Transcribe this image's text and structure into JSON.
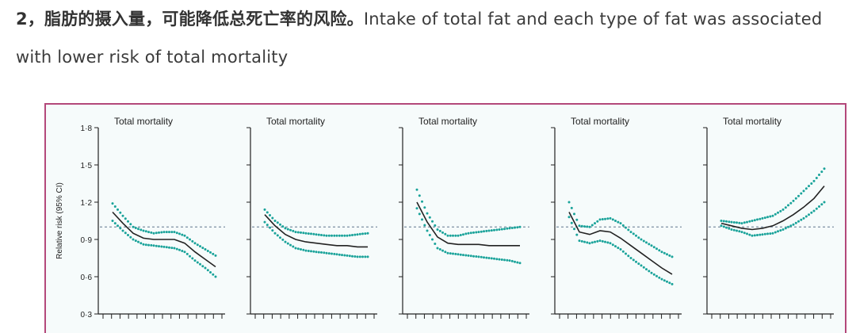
{
  "article": {
    "heading": "2，脂肪的摄入量，可能降低总死亡率的风险。",
    "body": "Intake of total fat and each type of fat was associated with lower risk of total mortality"
  },
  "colors": {
    "frame": "#b3487a",
    "curve": "#222222",
    "ci": "#1aa39a",
    "reference": "#8899aa"
  },
  "chart_data": [
    {
      "type": "line",
      "title": "Total mortality",
      "ylabel": "Relative risk (95% CI)",
      "ylim": [
        0.3,
        1.8
      ],
      "yticks": [
        0.3,
        0.6,
        0.9,
        1.2,
        1.5,
        1.8
      ],
      "ytick_labels": [
        "0·3",
        "0·6",
        "0·9",
        "1·2",
        "1·5",
        "1·8"
      ],
      "reference": 1.0,
      "xlim": [
        0,
        10
      ],
      "x": [
        0,
        1,
        2,
        3,
        4,
        5,
        6,
        7,
        8,
        9,
        10
      ],
      "series": [
        {
          "name": "estimate",
          "values": [
            1.12,
            1.03,
            0.95,
            0.91,
            0.9,
            0.9,
            0.9,
            0.87,
            0.8,
            0.74,
            0.68
          ]
        },
        {
          "name": "lower",
          "values": [
            1.05,
            0.97,
            0.9,
            0.86,
            0.85,
            0.84,
            0.83,
            0.8,
            0.73,
            0.67,
            0.6
          ]
        },
        {
          "name": "upper",
          "values": [
            1.19,
            1.09,
            1.0,
            0.97,
            0.95,
            0.96,
            0.96,
            0.93,
            0.87,
            0.82,
            0.77
          ]
        }
      ]
    },
    {
      "type": "line",
      "title": "Total mortality",
      "ylim": [
        0.3,
        1.8
      ],
      "reference": 1.0,
      "xlim": [
        0,
        10
      ],
      "x": [
        0,
        1,
        2,
        3,
        4,
        5,
        6,
        7,
        8,
        9,
        10
      ],
      "series": [
        {
          "name": "estimate",
          "values": [
            1.1,
            1.01,
            0.94,
            0.9,
            0.88,
            0.87,
            0.86,
            0.85,
            0.85,
            0.84,
            0.84
          ]
        },
        {
          "name": "lower",
          "values": [
            1.04,
            0.95,
            0.88,
            0.83,
            0.81,
            0.8,
            0.79,
            0.78,
            0.77,
            0.76,
            0.76
          ]
        },
        {
          "name": "upper",
          "values": [
            1.14,
            1.05,
            0.99,
            0.96,
            0.95,
            0.94,
            0.93,
            0.93,
            0.93,
            0.94,
            0.95
          ]
        }
      ]
    },
    {
      "type": "line",
      "title": "Total mortality",
      "ylim": [
        0.3,
        1.8
      ],
      "reference": 1.0,
      "xlim": [
        0,
        10
      ],
      "x": [
        0,
        1,
        2,
        3,
        4,
        5,
        6,
        7,
        8,
        9,
        10
      ],
      "series": [
        {
          "name": "estimate",
          "values": [
            1.2,
            1.04,
            0.92,
            0.87,
            0.86,
            0.86,
            0.86,
            0.85,
            0.85,
            0.85,
            0.85
          ]
        },
        {
          "name": "lower",
          "values": [
            1.15,
            0.97,
            0.83,
            0.79,
            0.78,
            0.77,
            0.76,
            0.75,
            0.74,
            0.73,
            0.71
          ]
        },
        {
          "name": "upper",
          "values": [
            1.3,
            1.11,
            0.98,
            0.93,
            0.93,
            0.95,
            0.96,
            0.97,
            0.98,
            0.99,
            1.0
          ]
        }
      ]
    },
    {
      "type": "line",
      "title": "Total mortality",
      "ylim": [
        0.3,
        1.8
      ],
      "reference": 1.0,
      "xlim": [
        0,
        10
      ],
      "x": [
        0,
        1,
        2,
        3,
        4,
        5,
        6,
        7,
        8,
        9,
        10
      ],
      "series": [
        {
          "name": "estimate",
          "values": [
            1.12,
            0.96,
            0.94,
            0.97,
            0.96,
            0.91,
            0.85,
            0.79,
            0.73,
            0.67,
            0.62
          ]
        },
        {
          "name": "lower",
          "values": [
            1.08,
            0.89,
            0.87,
            0.89,
            0.87,
            0.82,
            0.75,
            0.69,
            0.63,
            0.58,
            0.54
          ]
        },
        {
          "name": "upper",
          "values": [
            1.2,
            1.01,
            1.0,
            1.06,
            1.07,
            1.03,
            0.96,
            0.9,
            0.85,
            0.8,
            0.76
          ]
        }
      ]
    },
    {
      "type": "line",
      "title": "Total mortality",
      "ylim": [
        0.3,
        1.8
      ],
      "reference": 1.0,
      "xlim": [
        0,
        10
      ],
      "x": [
        0,
        1,
        2,
        3,
        4,
        5,
        6,
        7,
        8,
        9,
        10
      ],
      "series": [
        {
          "name": "estimate",
          "values": [
            1.03,
            1.01,
            0.99,
            0.98,
            0.99,
            1.01,
            1.05,
            1.1,
            1.16,
            1.23,
            1.33
          ]
        },
        {
          "name": "lower",
          "values": [
            1.01,
            0.98,
            0.96,
            0.93,
            0.94,
            0.95,
            0.98,
            1.02,
            1.07,
            1.13,
            1.2
          ]
        },
        {
          "name": "upper",
          "values": [
            1.05,
            1.04,
            1.03,
            1.05,
            1.07,
            1.09,
            1.14,
            1.21,
            1.29,
            1.37,
            1.47
          ]
        }
      ]
    }
  ]
}
